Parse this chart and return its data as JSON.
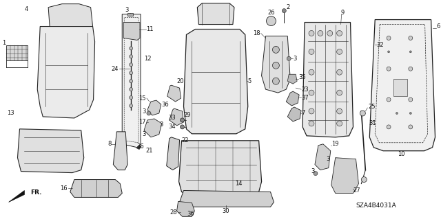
{
  "background_color": "#ffffff",
  "part_number": "SZA4B4031A",
  "fig_width": 6.4,
  "fig_height": 3.19,
  "dpi": 100,
  "lc": "#222222",
  "lw": 0.7
}
